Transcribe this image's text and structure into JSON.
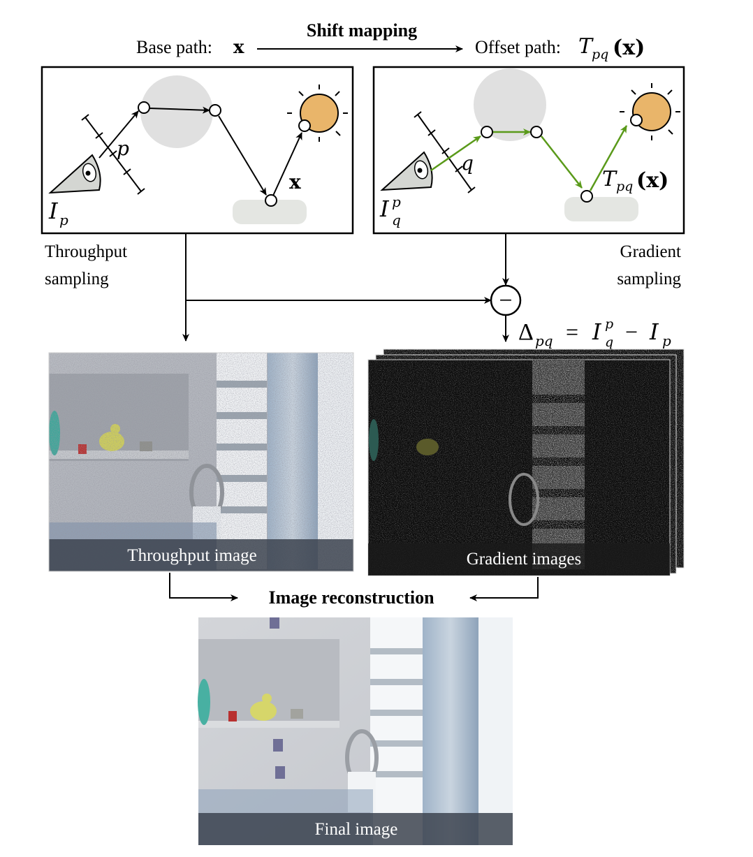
{
  "header": {
    "base_label": "Base path:",
    "base_symbol": "x",
    "mapping_label": "Shift mapping",
    "offset_label": "Offset path:",
    "offset_T": "T",
    "offset_sub": "pq",
    "offset_arg": "(x)"
  },
  "left_panel": {
    "pixel_var": "p",
    "path_var": "x",
    "camera_I": "I",
    "camera_sub": "p",
    "caption_line1": "Throughput",
    "caption_line2": "sampling"
  },
  "right_panel": {
    "pixel_var": "q",
    "path_T": "T",
    "path_sub": "pq",
    "path_arg": "(x)",
    "camera_I": "I",
    "camera_sup": "p",
    "camera_sub": "q",
    "caption_line1": "Gradient",
    "caption_line2": "sampling"
  },
  "difference": {
    "operator": "−",
    "delta": "Δ",
    "delta_sub": "pq",
    "equals": "=",
    "I1": "I",
    "I1_sup": "p",
    "I1_sub": "q",
    "minus": "−",
    "I2": "I",
    "I2_sub": "p"
  },
  "images": {
    "throughput_caption": "Throughput image",
    "gradient_caption": "Gradient images",
    "final_caption": "Final image"
  },
  "reconstruction_label": "Image reconstruction",
  "colors": {
    "offset_path": "#5a9a1a",
    "light": "#e9b56a",
    "sphere": "#e0e0e0",
    "floor": "#e4e6e2",
    "camera_fill": "#d4d6d2"
  }
}
